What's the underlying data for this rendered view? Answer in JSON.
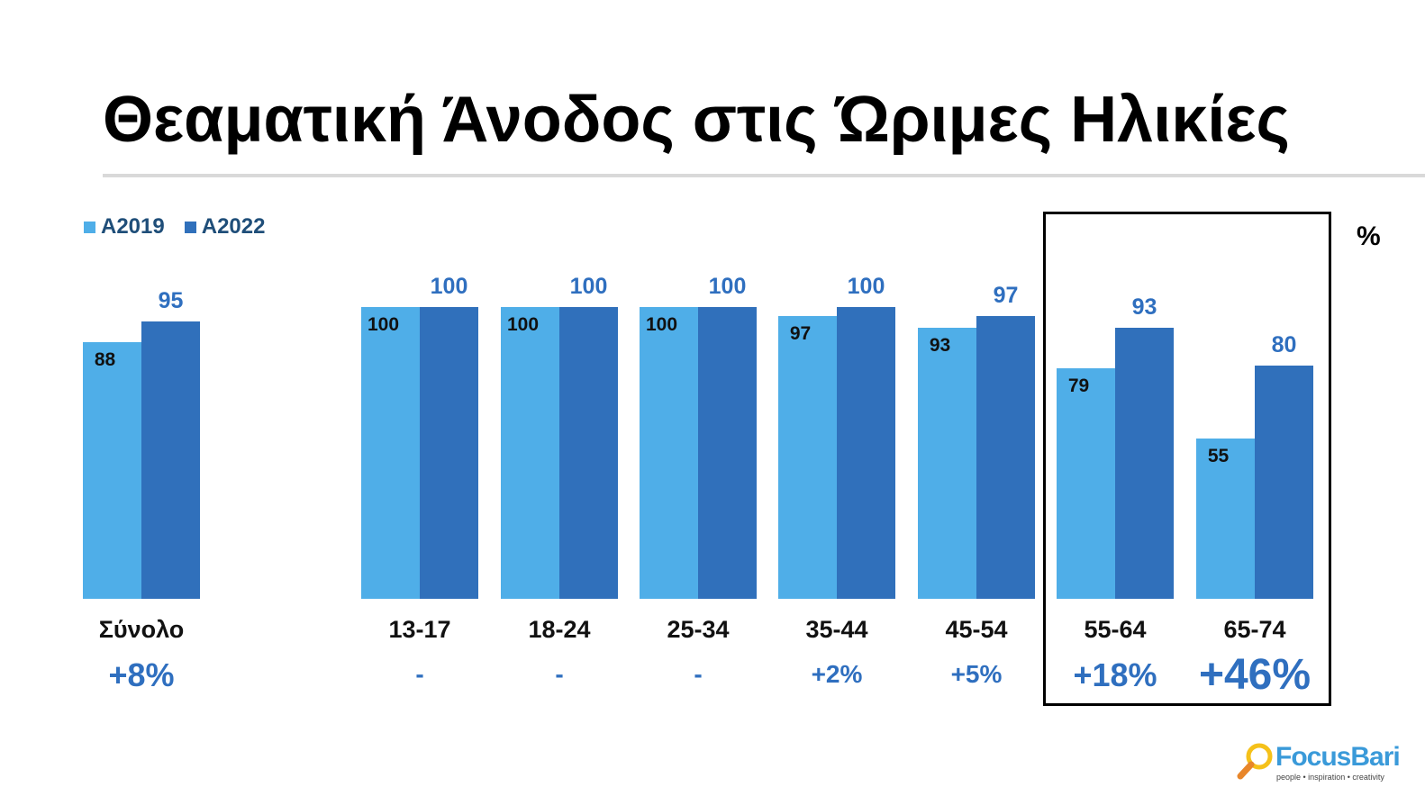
{
  "title": "Θεαματική Άνοδος στις Ώριμες Ηλικίες",
  "unit": "%",
  "logo": {
    "name": "FocusBari",
    "tagline": "people • inspiration • creativity"
  },
  "chart_data": {
    "type": "bar",
    "title": "Θεαματική Άνοδος στις Ώριμες Ηλικίες",
    "ylabel": "%",
    "ylim": [
      0,
      100
    ],
    "legend": "top-left",
    "grid": false,
    "categories": [
      "Σύνολο",
      "13-17",
      "18-24",
      "25-34",
      "35-44",
      "45-54",
      "55-64",
      "65-74"
    ],
    "series": [
      {
        "name": "A2019",
        "color": "#4faee8",
        "values": [
          88,
          100,
          100,
          100,
          97,
          93,
          79,
          55
        ]
      },
      {
        "name": "A2022",
        "color": "#3070bb",
        "values": [
          95,
          100,
          100,
          100,
          100,
          97,
          93,
          80
        ]
      }
    ],
    "changes": [
      "+8%",
      "-",
      "-",
      "-",
      "+2%",
      "+5%",
      "+18%",
      "+46%"
    ],
    "highlighted": [
      "55-64",
      "65-74"
    ]
  }
}
